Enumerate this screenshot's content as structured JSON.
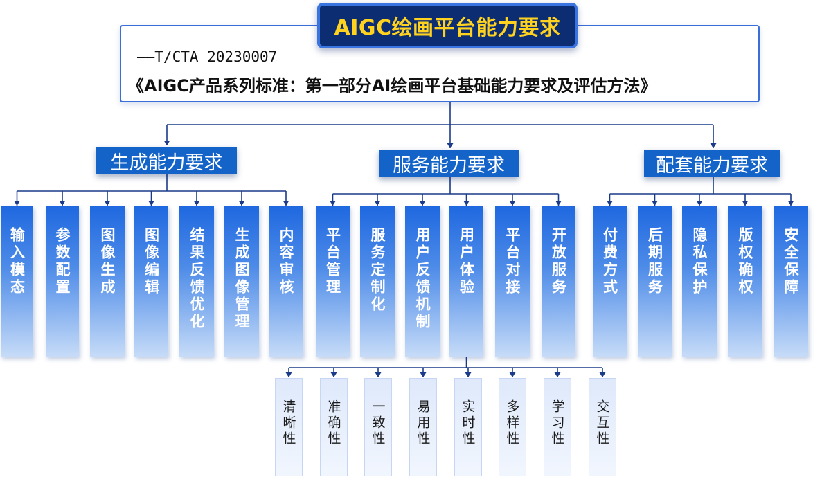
{
  "title": "AIGC绘画平台能力要求",
  "standard": {
    "id": "——T/CTA 20230007",
    "name": "《AIGC产品系列标准：第一部分AI绘画平台基础能力要求及评估方法》"
  },
  "categories": [
    {
      "label": "生成能力要求",
      "items": [
        "输入模态",
        "参数配置",
        "图像生成",
        "图像编辑",
        "结果反馈优化",
        "生成图像管理",
        "内容审核"
      ]
    },
    {
      "label": "服务能力要求",
      "items": [
        "平台管理",
        "服务定制化",
        "用户反馈机制",
        "用户体验",
        "平台对接",
        "开放服务"
      ]
    },
    {
      "label": "配套能力要求",
      "items": [
        "付费方式",
        "后期服务",
        "隐私保护",
        "版权确权",
        "安全保障"
      ]
    }
  ],
  "user_experience_items": [
    "清晰性",
    "准确性",
    "一致性",
    "易用性",
    "实时性",
    "多样性",
    "学习性",
    "交互性"
  ],
  "colors": {
    "title_bg": "#0d2d73",
    "title_text": "#ffd21f",
    "category_bg": "#1463c8",
    "connector": "#1a3a8a"
  }
}
